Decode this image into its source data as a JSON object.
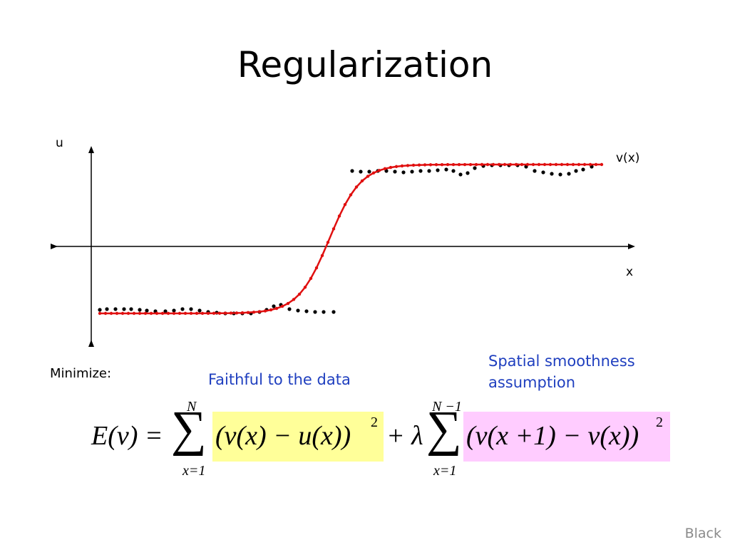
{
  "slide": {
    "title": "Regularization",
    "footer": "Black"
  },
  "plot": {
    "y_axis_label": "u",
    "x_axis_label": "x",
    "curve_label": "v(x)",
    "data_color": "#000000",
    "fit_color": "#e01010"
  },
  "text": {
    "minimize": "Minimize:",
    "faithful": "Faithful to the data",
    "smooth_line1": "Spatial smoothness",
    "smooth_line2": "assumption"
  },
  "equation": {
    "lhs": "E(v) =",
    "sum1_upper": "N",
    "sum1_lower": "x=1",
    "term1": "(v(x) − u(x))",
    "power1": "2",
    "plus_lambda": "+ λ",
    "sum2_upper": "N −1",
    "sum2_lower": "x=1",
    "term2": "(v(x +1) − v(x))",
    "power2": "2",
    "highlight1_color": "#ffff99",
    "highlight2_color": "#ffccff"
  }
}
